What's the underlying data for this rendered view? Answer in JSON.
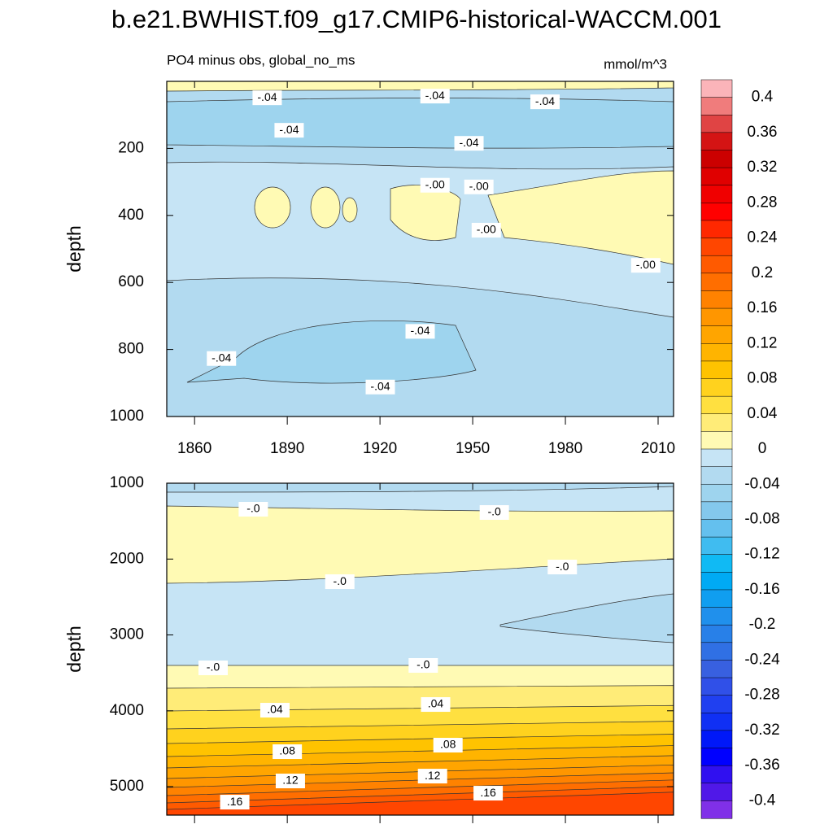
{
  "chart_data": [
    {
      "type": "contour",
      "title": "b.e21.BWHIST.f09_g17.CMIP6-historical-WACCM.001",
      "subtitle": "PO4 minus obs, global_no_ms",
      "units": "mmol/m^3",
      "ylabel": "depth",
      "xlim": [
        1851,
        2015
      ],
      "xticks": [
        1860,
        1890,
        1920,
        1950,
        1980,
        2010
      ],
      "ylim": [
        0,
        1000
      ],
      "yticks": [
        200,
        400,
        600,
        800,
        1000
      ],
      "contour_labels": [
        {
          "text": "-.04",
          "x": 1883.5,
          "y": 49
        },
        {
          "text": "-.04",
          "x": 1937.8,
          "y": 44
        },
        {
          "text": "-.04",
          "x": 1973.4,
          "y": 61
        },
        {
          "text": "-.04",
          "x": 1890.6,
          "y": 146
        },
        {
          "text": "-.04",
          "x": 1948.8,
          "y": 185
        },
        {
          "text": "-.00",
          "x": 1937.8,
          "y": 310
        },
        {
          "text": "-.00",
          "x": 1952,
          "y": 315
        },
        {
          "text": "-.00",
          "x": 1954.4,
          "y": 444
        },
        {
          "text": "-.00",
          "x": 2006,
          "y": 549
        },
        {
          "text": "-.04",
          "x": 1933,
          "y": 746
        },
        {
          "text": "-.04",
          "x": 1868.7,
          "y": 827
        },
        {
          "text": "-.04",
          "x": 1920.1,
          "y": 912
        }
      ],
      "colorbar": {
        "lim": [
          -0.42,
          0.42
        ],
        "colors": [
          "#fbb4b9",
          "#f07c7c",
          "#e04444",
          "#d41414",
          "#cc0000",
          "#e00000",
          "#f00000",
          "#ff0000",
          "#ff2800",
          "#ff4600",
          "#ff5a00",
          "#ff6e00",
          "#ff8200",
          "#ff9600",
          "#ffa500",
          "#ffb400",
          "#ffc300",
          "#ffd21e",
          "#ffe040",
          "#ffec78",
          "#fffab4",
          "#c6e4f5",
          "#b2daf0",
          "#9ed4ee",
          "#84c8ec",
          "#64c0ee",
          "#40bcf0",
          "#10baf4",
          "#00aaf4",
          "#109ef0",
          "#2090ec",
          "#2880e8",
          "#3070e4",
          "#3860e0",
          "#3050e8",
          "#2040f0",
          "#1030f4",
          "#0018f8",
          "#0000ff",
          "#3010f0",
          "#5018e8",
          "#8030e8"
        ],
        "ticks": [
          0.4,
          0.36,
          0.32,
          0.28,
          0.24,
          0.2,
          0.16,
          0.12,
          0.08,
          0.04,
          0,
          -0.04,
          -0.08,
          -0.12,
          -0.16,
          -0.2,
          -0.24,
          -0.28,
          -0.32,
          -0.36,
          -0.4
        ]
      }
    },
    {
      "type": "contour",
      "ylabel": "depth",
      "xlim": [
        1851,
        2015
      ],
      "xticks": [
        1860,
        1890,
        1920,
        1950,
        1980,
        2010
      ],
      "ylim": [
        1000,
        5375
      ],
      "yticks": [
        1000,
        2000,
        3000,
        4000,
        5000
      ],
      "contour_labels": [
        {
          "text": "-.0",
          "x": 1879,
          "y": 1343
        },
        {
          "text": "-.0",
          "x": 1957,
          "y": 1386
        },
        {
          "text": "-.0",
          "x": 1979,
          "y": 2105
        },
        {
          "text": "-.0",
          "x": 1907,
          "y": 2298
        },
        {
          "text": "-.0",
          "x": 1866,
          "y": 3434
        },
        {
          "text": "-.0",
          "x": 1934,
          "y": 3402
        },
        {
          "text": ".04",
          "x": 1886,
          "y": 3992
        },
        {
          "text": ".04",
          "x": 1938,
          "y": 3917
        },
        {
          "text": ".08",
          "x": 1890,
          "y": 4539
        },
        {
          "text": ".08",
          "x": 1942,
          "y": 4453
        },
        {
          "text": ".12",
          "x": 1891,
          "y": 4925
        },
        {
          "text": ".12",
          "x": 1937,
          "y": 4861
        },
        {
          "text": ".16",
          "x": 1873,
          "y": 5204
        },
        {
          "text": ".16",
          "x": 1955,
          "y": 5086
        }
      ]
    }
  ]
}
